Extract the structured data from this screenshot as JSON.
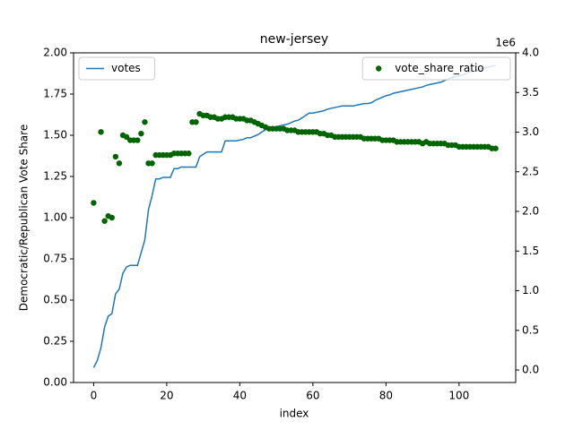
{
  "chart_data": {
    "type": "line",
    "title": "new-jersey",
    "x_label": "index",
    "y_label": "Democratic/Republican Vote Share",
    "y2_offset_label": "1e6",
    "x": [
      0,
      1,
      2,
      3,
      4,
      5,
      6,
      7,
      8,
      9,
      10,
      11,
      12,
      13,
      14,
      15,
      16,
      17,
      18,
      19,
      20,
      21,
      22,
      23,
      24,
      25,
      26,
      27,
      28,
      29,
      30,
      31,
      32,
      33,
      34,
      35,
      36,
      37,
      38,
      39,
      40,
      41,
      42,
      43,
      44,
      45,
      46,
      47,
      48,
      49,
      50,
      51,
      52,
      53,
      54,
      55,
      56,
      57,
      58,
      59,
      60,
      61,
      62,
      63,
      64,
      65,
      66,
      67,
      68,
      69,
      70,
      71,
      72,
      73,
      74,
      75,
      76,
      77,
      78,
      79,
      80,
      81,
      82,
      83,
      84,
      85,
      86,
      87,
      88,
      89,
      90,
      91,
      92,
      93,
      94,
      95,
      96,
      97,
      98,
      99,
      100,
      101,
      102,
      103,
      104,
      105,
      106,
      107,
      108,
      109,
      110
    ],
    "xlim": [
      -5.5,
      115.5
    ],
    "xticks": [
      0,
      20,
      40,
      60,
      80,
      100
    ],
    "ylim": [
      0,
      2
    ],
    "yticks": [
      {
        "value": 0,
        "label": "0.00"
      },
      {
        "value": 0.25,
        "label": "0.25"
      },
      {
        "value": 0.5,
        "label": "0.50"
      },
      {
        "value": 0.75,
        "label": "0.75"
      },
      {
        "value": 1,
        "label": "1.00"
      },
      {
        "value": 1.25,
        "label": "1.25"
      },
      {
        "value": 1.5,
        "label": "1.50"
      },
      {
        "value": 1.75,
        "label": "1.75"
      },
      {
        "value": 2,
        "label": "2.00"
      }
    ],
    "y2lim": [
      -158000,
      4000000
    ],
    "y2ticks": [
      {
        "value": 0,
        "label": "0.0"
      },
      {
        "value": 500000,
        "label": "0.5"
      },
      {
        "value": 1000000,
        "label": "1.0"
      },
      {
        "value": 1500000,
        "label": "1.5"
      },
      {
        "value": 2000000,
        "label": "2.0"
      },
      {
        "value": 2500000,
        "label": "2.5"
      },
      {
        "value": 3000000,
        "label": "3.0"
      },
      {
        "value": 3500000,
        "label": "3.5"
      },
      {
        "value": 4000000,
        "label": "4.0"
      }
    ],
    "series": [
      {
        "name": "votes",
        "type": "line",
        "axis": "y2",
        "color": "#1f77b4",
        "legend_loc": "upper left",
        "values": [
          30000,
          120000,
          280000,
          540000,
          680000,
          710000,
          960000,
          1020000,
          1220000,
          1300000,
          1320000,
          1320000,
          1320000,
          1480000,
          1640000,
          2020000,
          2200000,
          2410000,
          2410000,
          2430000,
          2430000,
          2430000,
          2540000,
          2540000,
          2560000,
          2560000,
          2560000,
          2560000,
          2560000,
          2690000,
          2720000,
          2750000,
          2750000,
          2750000,
          2750000,
          2750000,
          2890000,
          2890000,
          2890000,
          2890000,
          2900000,
          2910000,
          2930000,
          2930000,
          2950000,
          2970000,
          3000000,
          3030000,
          3050000,
          3060000,
          3070000,
          3080000,
          3090000,
          3100000,
          3120000,
          3140000,
          3150000,
          3180000,
          3210000,
          3240000,
          3240000,
          3250000,
          3260000,
          3270000,
          3290000,
          3300000,
          3310000,
          3320000,
          3330000,
          3330000,
          3330000,
          3330000,
          3340000,
          3350000,
          3360000,
          3360000,
          3370000,
          3400000,
          3420000,
          3440000,
          3460000,
          3470000,
          3490000,
          3500000,
          3510000,
          3520000,
          3530000,
          3540000,
          3550000,
          3560000,
          3570000,
          3590000,
          3600000,
          3610000,
          3620000,
          3630000,
          3650000,
          3670000,
          3690000,
          3700000,
          3710000,
          3720000,
          3740000,
          3760000,
          3770000,
          3780000,
          3800000,
          3810000,
          3820000,
          3830000,
          3840000
        ]
      },
      {
        "name": "vote_share_ratio",
        "type": "scatter",
        "axis": "y",
        "color": "#006400",
        "legend_loc": "upper right",
        "values": [
          1.09,
          null,
          1.52,
          0.98,
          1.01,
          1.0,
          1.37,
          1.33,
          1.5,
          1.49,
          1.47,
          1.47,
          1.47,
          1.51,
          1.58,
          1.33,
          1.33,
          1.38,
          1.38,
          1.38,
          1.38,
          1.38,
          1.39,
          1.39,
          1.39,
          1.39,
          1.39,
          1.58,
          1.58,
          1.63,
          1.62,
          1.62,
          1.61,
          1.61,
          1.6,
          1.6,
          1.61,
          1.61,
          1.61,
          1.6,
          1.6,
          1.6,
          1.59,
          1.59,
          1.58,
          1.57,
          1.56,
          1.55,
          1.54,
          1.54,
          1.54,
          1.54,
          1.54,
          1.53,
          1.53,
          1.53,
          1.52,
          1.52,
          1.52,
          1.52,
          1.52,
          1.52,
          1.51,
          1.51,
          1.5,
          1.5,
          1.49,
          1.49,
          1.49,
          1.49,
          1.49,
          1.49,
          1.49,
          1.49,
          1.48,
          1.48,
          1.48,
          1.48,
          1.48,
          1.47,
          1.47,
          1.47,
          1.47,
          1.46,
          1.46,
          1.46,
          1.46,
          1.46,
          1.46,
          1.46,
          1.45,
          1.46,
          1.45,
          1.45,
          1.45,
          1.45,
          1.45,
          1.44,
          1.44,
          1.44,
          1.43,
          1.43,
          1.43,
          1.43,
          1.43,
          1.43,
          1.43,
          1.43,
          1.43,
          1.42,
          1.42
        ]
      }
    ]
  }
}
